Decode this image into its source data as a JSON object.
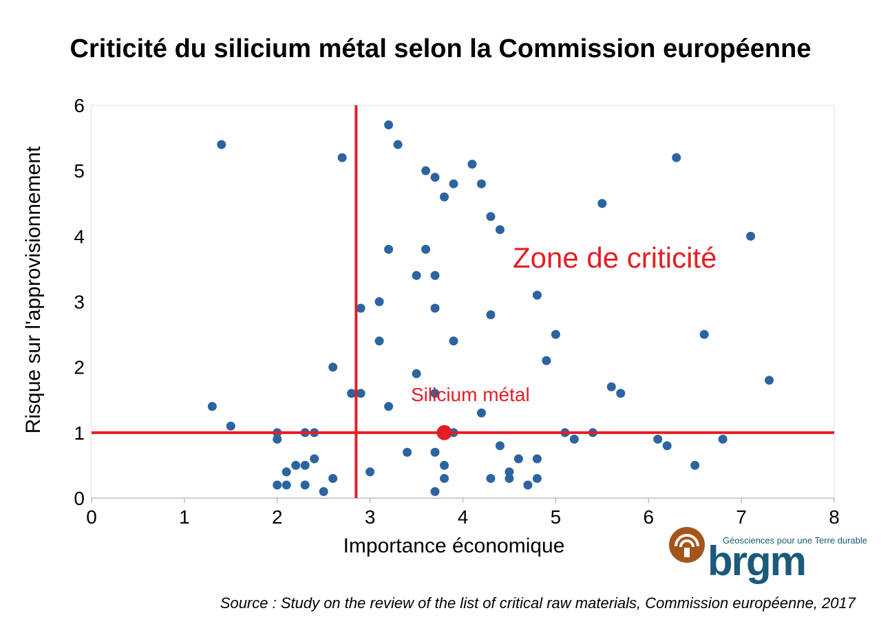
{
  "chart_data": {
    "type": "scatter",
    "title": "Criticité du silicium métal selon la Commission européenne",
    "xlabel": "Importance économique",
    "ylabel": "Risque sur l'approvisionnement",
    "xlim": [
      0,
      8
    ],
    "ylim": [
      0,
      6
    ],
    "xticks": [
      "0",
      "1",
      "2",
      "3",
      "4",
      "5",
      "6",
      "7",
      "8"
    ],
    "yticks": [
      "0",
      "1",
      "2",
      "3",
      "4",
      "5",
      "6"
    ],
    "grid": false,
    "series": [
      {
        "color": "#2b64a0",
        "points": [
          [
            1.4,
            5.4
          ],
          [
            2.7,
            5.2
          ],
          [
            3.2,
            5.7
          ],
          [
            3.3,
            5.4
          ],
          [
            3.6,
            5.0
          ],
          [
            3.7,
            4.9
          ],
          [
            3.9,
            4.8
          ],
          [
            4.1,
            5.1
          ],
          [
            4.2,
            4.8
          ],
          [
            3.8,
            4.6
          ],
          [
            6.3,
            5.2
          ],
          [
            5.5,
            4.5
          ],
          [
            4.3,
            4.3
          ],
          [
            4.4,
            4.1
          ],
          [
            7.1,
            4.0
          ],
          [
            3.2,
            3.8
          ],
          [
            3.6,
            3.8
          ],
          [
            3.5,
            3.4
          ],
          [
            3.7,
            3.4
          ],
          [
            4.8,
            3.1
          ],
          [
            3.1,
            3.0
          ],
          [
            2.9,
            2.9
          ],
          [
            3.7,
            2.9
          ],
          [
            4.3,
            2.8
          ],
          [
            5.0,
            2.5
          ],
          [
            6.6,
            2.5
          ],
          [
            3.1,
            2.4
          ],
          [
            3.9,
            2.4
          ],
          [
            4.9,
            2.1
          ],
          [
            2.6,
            2.0
          ],
          [
            3.5,
            1.9
          ],
          [
            7.3,
            1.8
          ],
          [
            5.6,
            1.7
          ],
          [
            5.7,
            1.6
          ],
          [
            2.8,
            1.6
          ],
          [
            2.9,
            1.6
          ],
          [
            3.7,
            1.6
          ],
          [
            1.3,
            1.4
          ],
          [
            3.2,
            1.4
          ],
          [
            4.2,
            1.3
          ],
          [
            1.5,
            1.1
          ],
          [
            2.0,
            1.0
          ],
          [
            2.3,
            1.0
          ],
          [
            2.4,
            1.0
          ],
          [
            3.9,
            1.0
          ],
          [
            5.1,
            1.0
          ],
          [
            5.4,
            1.0
          ],
          [
            2.0,
            0.9
          ],
          [
            5.2,
            0.9
          ],
          [
            6.1,
            0.9
          ],
          [
            6.8,
            0.9
          ],
          [
            4.4,
            0.8
          ],
          [
            6.2,
            0.8
          ],
          [
            3.4,
            0.7
          ],
          [
            3.7,
            0.7
          ],
          [
            2.4,
            0.6
          ],
          [
            4.6,
            0.6
          ],
          [
            4.8,
            0.6
          ],
          [
            2.2,
            0.5
          ],
          [
            2.3,
            0.5
          ],
          [
            3.8,
            0.5
          ],
          [
            6.5,
            0.5
          ],
          [
            2.1,
            0.4
          ],
          [
            3.0,
            0.4
          ],
          [
            4.5,
            0.4
          ],
          [
            2.6,
            0.3
          ],
          [
            3.8,
            0.3
          ],
          [
            4.3,
            0.3
          ],
          [
            4.5,
            0.3
          ],
          [
            4.8,
            0.3
          ],
          [
            2.0,
            0.2
          ],
          [
            2.1,
            0.2
          ],
          [
            2.3,
            0.2
          ],
          [
            4.7,
            0.2
          ],
          [
            2.5,
            0.1
          ],
          [
            3.7,
            0.1
          ]
        ]
      }
    ],
    "highlight": {
      "label": "Silicium métal",
      "x": 3.8,
      "y": 1.0,
      "color": "#e31e24"
    },
    "thresholds": {
      "x": 2.85,
      "y": 1.0,
      "color": "#e31e24"
    },
    "zone_label": "Zone de criticité"
  },
  "logo": {
    "tagline": "Géosciences pour une Terre durable",
    "wordmark": "brgm",
    "color": "#1a5a7a",
    "icon_color": "#a4551b"
  },
  "source": "Source : Study on the review of the list of critical raw materials, Commission européenne, 2017"
}
